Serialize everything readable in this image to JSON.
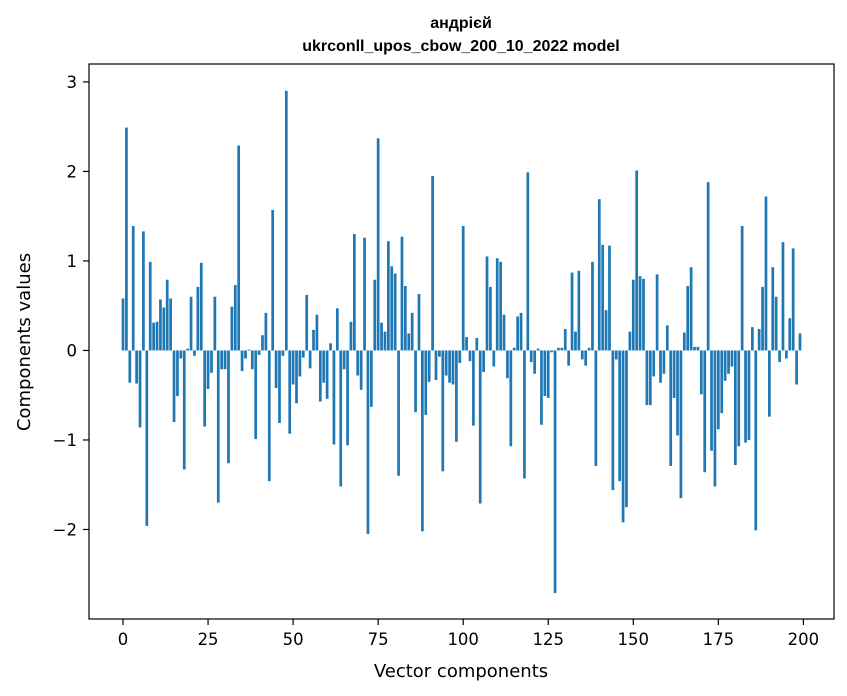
{
  "chart_data": {
    "type": "bar",
    "title": "андрієй",
    "subtitle": "ukrconll_upos_cbow_200_10_2022 model",
    "xlabel": "Vector components",
    "ylabel": "Components values",
    "xlim": [
      -10,
      209
    ],
    "ylim": [
      -3.0,
      3.2
    ],
    "xticks": [
      0,
      25,
      50,
      75,
      100,
      125,
      150,
      175,
      200
    ],
    "xtick_labels": [
      "0",
      "25",
      "50",
      "75",
      "100",
      "125",
      "150",
      "175",
      "200"
    ],
    "yticks": [
      -2,
      -1,
      0,
      1,
      2,
      3
    ],
    "ytick_labels": [
      "−2",
      "−1",
      "0",
      "1",
      "2",
      "3"
    ],
    "grid": false,
    "bar_color": "#1f77b4",
    "values": [
      0.58,
      2.49,
      -0.36,
      1.39,
      -0.37,
      -0.86,
      1.33,
      -1.96,
      0.99,
      0.31,
      0.32,
      0.57,
      0.48,
      0.79,
      0.58,
      -0.8,
      -0.51,
      -0.09,
      -1.33,
      0.02,
      0.6,
      -0.06,
      0.71,
      0.98,
      -0.85,
      -0.43,
      -0.25,
      0.6,
      -1.7,
      -0.21,
      -0.21,
      -1.26,
      0.49,
      0.73,
      2.29,
      -0.23,
      -0.09,
      0.01,
      -0.21,
      -0.99,
      -0.05,
      0.17,
      0.42,
      -1.46,
      1.57,
      -0.42,
      -0.81,
      -0.06,
      2.9,
      -0.93,
      -0.38,
      -0.59,
      -0.29,
      -0.08,
      0.62,
      -0.2,
      0.23,
      0.4,
      -0.57,
      -0.36,
      -0.54,
      0.08,
      -1.05,
      0.47,
      -1.52,
      -0.21,
      -1.06,
      0.32,
      1.3,
      -0.28,
      -0.44,
      1.26,
      -2.05,
      -0.63,
      0.79,
      2.37,
      0.31,
      0.21,
      1.22,
      0.94,
      0.86,
      -1.4,
      1.27,
      0.72,
      0.19,
      0.42,
      -0.69,
      0.63,
      -2.02,
      -0.72,
      -0.35,
      1.95,
      -0.33,
      -0.07,
      -1.35,
      -0.28,
      -0.36,
      -0.38,
      -1.02,
      -0.14,
      1.39,
      0.15,
      -0.12,
      -0.84,
      0.14,
      -1.71,
      -0.24,
      1.05,
      0.71,
      -0.18,
      1.03,
      0.99,
      0.4,
      -0.31,
      -1.07,
      0.03,
      0.38,
      0.42,
      -1.43,
      1.99,
      -0.13,
      -0.26,
      0.02,
      -0.83,
      -0.51,
      -0.53,
      -0.02,
      -2.71,
      0.03,
      0.03,
      0.24,
      -0.17,
      0.87,
      0.21,
      0.89,
      -0.1,
      -0.17,
      0.03,
      0.99,
      -1.29,
      1.69,
      1.18,
      0.45,
      1.17,
      -1.56,
      -0.1,
      -1.46,
      -1.92,
      -1.75,
      0.21,
      0.79,
      2.01,
      0.83,
      0.8,
      -0.61,
      -0.61,
      -0.29,
      0.85,
      -0.36,
      -0.26,
      0.28,
      -1.29,
      -0.53,
      -0.95,
      -1.65,
      0.2,
      0.72,
      0.93,
      0.04,
      0.04,
      -0.49,
      -1.36,
      1.88,
      -1.12,
      -1.52,
      -0.88,
      -0.7,
      -0.34,
      -0.26,
      -0.18,
      -1.28,
      -1.07,
      1.39,
      -1.03,
      -1.0,
      0.26,
      -2.01,
      0.24,
      0.71,
      1.72,
      -0.74,
      0.93,
      0.6,
      -0.13,
      1.21,
      -0.09,
      0.36,
      1.14,
      -0.38,
      0.19
    ]
  }
}
